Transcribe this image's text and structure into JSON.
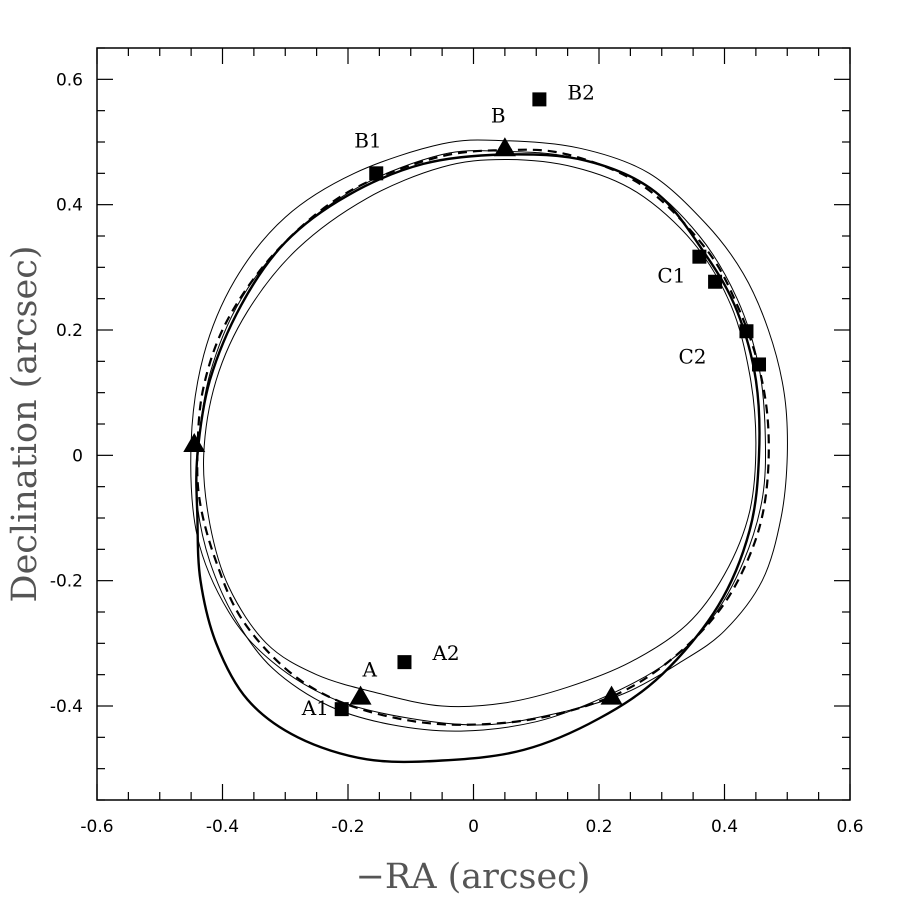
{
  "chart_data": {
    "type": "scatter",
    "title": "",
    "xlabel": "−RA (arcsec)",
    "ylabel": "Declination (arcsec)",
    "xlim": [
      -0.6,
      0.6
    ],
    "ylim": [
      -0.55,
      0.65
    ],
    "x_ticks": [
      -0.6,
      -0.4,
      -0.2,
      0,
      0.2,
      0.4,
      0.6
    ],
    "x_tick_labels": [
      "-0.6",
      "-0.4",
      "-0.2",
      "0",
      "0.2",
      "0.4",
      "0.6"
    ],
    "y_ticks": [
      -0.4,
      -0.2,
      0,
      0.2,
      0.4,
      0.6
    ],
    "y_tick_labels": [
      "-0.4",
      "-0.2",
      "0",
      "0.2",
      "0.4",
      "0.6"
    ],
    "grid": false,
    "legend": "none",
    "colors": {
      "ink": "#000000",
      "axis_title": "#555555"
    },
    "squares": [
      {
        "label": "A1",
        "x": -0.21,
        "y": -0.405
      },
      {
        "label": "A2",
        "x": -0.11,
        "y": -0.33
      },
      {
        "label": "B1",
        "x": -0.155,
        "y": 0.45
      },
      {
        "label": "B2",
        "x": 0.105,
        "y": 0.568
      },
      {
        "label": "C1",
        "x": 0.36,
        "y": 0.317
      },
      {
        "label": "",
        "x": 0.385,
        "y": 0.277
      },
      {
        "label": "C2",
        "x": 0.435,
        "y": 0.198
      },
      {
        "label": "",
        "x": 0.455,
        "y": 0.145
      }
    ],
    "triangles": [
      {
        "label": "A",
        "x": -0.18,
        "y": -0.385
      },
      {
        "label": "B",
        "x": 0.05,
        "y": 0.49
      },
      {
        "label": "",
        "x": -0.445,
        "y": 0.018
      },
      {
        "label": "",
        "x": 0.22,
        "y": -0.385
      }
    ],
    "curves": [
      {
        "style": "dashed",
        "points": [
          [
            -0.44,
            0.0
          ],
          [
            -0.43,
            0.11
          ],
          [
            -0.39,
            0.22
          ],
          [
            -0.31,
            0.33
          ],
          [
            -0.2,
            0.42
          ],
          [
            -0.06,
            0.475
          ],
          [
            0.05,
            0.487
          ],
          [
            0.15,
            0.48
          ],
          [
            0.27,
            0.43
          ],
          [
            0.37,
            0.33
          ],
          [
            0.42,
            0.24
          ],
          [
            0.455,
            0.14
          ],
          [
            0.47,
            0.04
          ],
          [
            0.465,
            -0.07
          ],
          [
            0.44,
            -0.16
          ],
          [
            0.39,
            -0.25
          ],
          [
            0.31,
            -0.33
          ],
          [
            0.22,
            -0.385
          ],
          [
            0.1,
            -0.42
          ],
          [
            -0.02,
            -0.43
          ],
          [
            -0.12,
            -0.42
          ],
          [
            -0.22,
            -0.39
          ],
          [
            -0.3,
            -0.34
          ],
          [
            -0.37,
            -0.26
          ],
          [
            -0.41,
            -0.17
          ],
          [
            -0.435,
            -0.08
          ],
          [
            -0.44,
            0.0
          ]
        ]
      },
      {
        "style": "thick",
        "points": [
          [
            -0.44,
            0.0
          ],
          [
            -0.42,
            0.12
          ],
          [
            -0.37,
            0.24
          ],
          [
            -0.3,
            0.34
          ],
          [
            -0.2,
            0.415
          ],
          [
            -0.08,
            0.465
          ],
          [
            0.05,
            0.48
          ],
          [
            0.18,
            0.47
          ],
          [
            0.29,
            0.42
          ],
          [
            0.37,
            0.32
          ],
          [
            0.42,
            0.23
          ],
          [
            0.45,
            0.12
          ],
          [
            0.455,
            0.0
          ],
          [
            0.44,
            -0.12
          ],
          [
            0.39,
            -0.24
          ],
          [
            0.3,
            -0.35
          ],
          [
            0.2,
            -0.42
          ],
          [
            0.08,
            -0.47
          ],
          [
            -0.05,
            -0.487
          ],
          [
            -0.17,
            -0.485
          ],
          [
            -0.28,
            -0.45
          ],
          [
            -0.36,
            -0.39
          ],
          [
            -0.41,
            -0.3
          ],
          [
            -0.435,
            -0.2
          ],
          [
            -0.44,
            -0.1
          ],
          [
            -0.44,
            0.0
          ]
        ]
      },
      {
        "style": "thin",
        "points": [
          [
            -0.45,
            0.02
          ],
          [
            -0.43,
            0.16
          ],
          [
            -0.38,
            0.28
          ],
          [
            -0.3,
            0.38
          ],
          [
            -0.19,
            0.45
          ],
          [
            -0.05,
            0.497
          ],
          [
            0.05,
            0.502
          ],
          [
            0.17,
            0.49
          ],
          [
            0.28,
            0.45
          ],
          [
            0.37,
            0.37
          ],
          [
            0.43,
            0.29
          ],
          [
            0.47,
            0.2
          ],
          [
            0.495,
            0.1
          ],
          [
            0.5,
            0.0
          ],
          [
            0.49,
            -0.1
          ],
          [
            0.46,
            -0.2
          ],
          [
            0.4,
            -0.28
          ],
          [
            0.33,
            -0.33
          ],
          [
            0.24,
            -0.38
          ],
          [
            0.14,
            -0.41
          ],
          [
            0.02,
            -0.43
          ],
          [
            -0.1,
            -0.42
          ],
          [
            -0.22,
            -0.39
          ],
          [
            -0.32,
            -0.33
          ],
          [
            -0.39,
            -0.25
          ],
          [
            -0.44,
            -0.13
          ],
          [
            -0.45,
            0.02
          ]
        ]
      },
      {
        "style": "thin",
        "points": [
          [
            -0.43,
            0.0
          ],
          [
            -0.41,
            0.12
          ],
          [
            -0.36,
            0.23
          ],
          [
            -0.28,
            0.33
          ],
          [
            -0.17,
            0.41
          ],
          [
            -0.05,
            0.46
          ],
          [
            0.05,
            0.472
          ],
          [
            0.16,
            0.46
          ],
          [
            0.26,
            0.42
          ],
          [
            0.35,
            0.34
          ],
          [
            0.41,
            0.24
          ],
          [
            0.44,
            0.13
          ],
          [
            0.45,
            0.02
          ],
          [
            0.44,
            -0.09
          ],
          [
            0.4,
            -0.19
          ],
          [
            0.34,
            -0.27
          ],
          [
            0.25,
            -0.33
          ],
          [
            0.15,
            -0.37
          ],
          [
            0.05,
            -0.395
          ],
          [
            -0.05,
            -0.4
          ],
          [
            -0.15,
            -0.38
          ],
          [
            -0.25,
            -0.35
          ],
          [
            -0.33,
            -0.3
          ],
          [
            -0.39,
            -0.21
          ],
          [
            -0.42,
            -0.11
          ],
          [
            -0.43,
            0.0
          ]
        ]
      },
      {
        "style": "thin",
        "points": [
          [
            -0.44,
            0.0
          ],
          [
            -0.42,
            0.13
          ],
          [
            -0.37,
            0.25
          ],
          [
            -0.29,
            0.35
          ],
          [
            -0.18,
            0.43
          ],
          [
            -0.05,
            0.48
          ],
          [
            0.05,
            0.485
          ],
          [
            0.16,
            0.475
          ],
          [
            0.27,
            0.435
          ],
          [
            0.36,
            0.35
          ],
          [
            0.42,
            0.25
          ],
          [
            0.455,
            0.14
          ],
          [
            0.465,
            0.03
          ],
          [
            0.46,
            -0.07
          ],
          [
            0.43,
            -0.17
          ],
          [
            0.38,
            -0.26
          ],
          [
            0.31,
            -0.33
          ],
          [
            0.21,
            -0.385
          ],
          [
            0.1,
            -0.425
          ],
          [
            -0.02,
            -0.44
          ],
          [
            -0.13,
            -0.43
          ],
          [
            -0.23,
            -0.4
          ],
          [
            -0.32,
            -0.34
          ],
          [
            -0.38,
            -0.26
          ],
          [
            -0.42,
            -0.17
          ],
          [
            -0.44,
            -0.08
          ],
          [
            -0.44,
            0.0
          ]
        ]
      }
    ]
  }
}
